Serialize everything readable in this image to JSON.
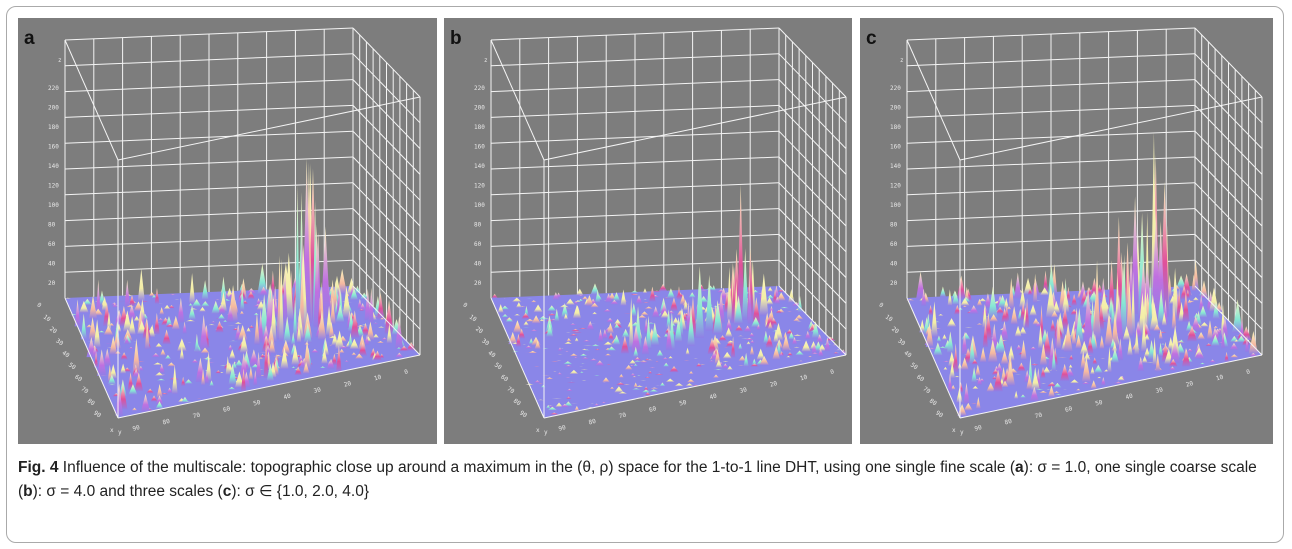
{
  "figure": {
    "panels": [
      {
        "label": "a",
        "z_axis": "z",
        "z_ticks": [
          220,
          200,
          180,
          160,
          140,
          120,
          100,
          80,
          60,
          40,
          20
        ],
        "y_ticks": [
          0,
          10,
          20,
          30,
          40,
          50,
          60,
          70,
          80,
          90
        ],
        "x_ticks": [
          90,
          80,
          70,
          60,
          50,
          40,
          30,
          20,
          10,
          0
        ],
        "x_axis": "x",
        "y_axis": "y"
      },
      {
        "label": "b",
        "z_axis": "z",
        "z_ticks": [
          220,
          200,
          180,
          160,
          140,
          120,
          100,
          80,
          60,
          40,
          20
        ],
        "y_ticks": [
          0,
          10,
          20,
          30,
          40,
          50,
          60,
          70,
          80,
          90
        ],
        "x_ticks": [
          90,
          80,
          70,
          60,
          50,
          40,
          30,
          20,
          10,
          0
        ],
        "x_axis": "x",
        "y_axis": "y"
      },
      {
        "label": "c",
        "z_axis": "z",
        "z_ticks": [
          220,
          200,
          180,
          160,
          140,
          120,
          100,
          80,
          60,
          40,
          20
        ],
        "y_ticks": [
          0,
          10,
          20,
          30,
          40,
          50,
          60,
          70,
          80,
          90
        ],
        "x_ticks": [
          90,
          80,
          70,
          60,
          50,
          40,
          30,
          20,
          10,
          0
        ],
        "x_axis": "x",
        "y_axis": "y"
      }
    ],
    "caption": {
      "label": "Fig. 4",
      "parts": [
        "Influence of the multiscale: topographic close up around a maximum in the (θ, ρ) space for the 1-to-1 line DHT, using one single fine scale (",
        "a",
        "): σ = 1.0, one single coarse scale (",
        "b",
        "): σ = 4.0 and three scales (",
        "c",
        "): σ ∈ {1.0, 2.0, 4.0}"
      ]
    }
  }
}
